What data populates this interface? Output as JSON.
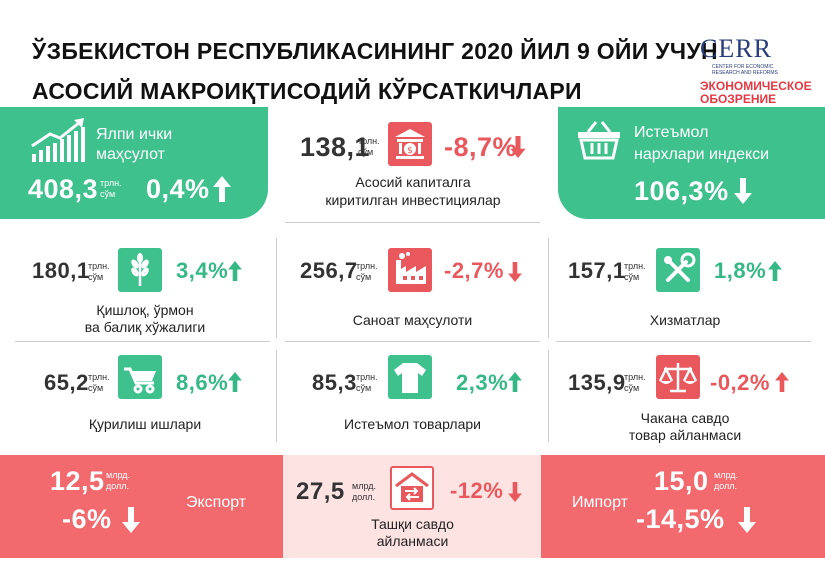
{
  "header": {
    "line1": "ЎЗБЕКИСТОН РЕСПУБЛИКАСИНИНГ 2020 ЙИЛ 9 ОЙИ УЧУН",
    "line2": "АСОСИЙ  МАКРОИҚТИСОДИЙ КЎРСАТКИЧЛАРИ"
  },
  "logo": {
    "name": "CERR",
    "sub1": "CENTER FOR ECONOMIC",
    "sub2": "RESEARCH AND REFORMS",
    "eo1": "ЭКОНОМИЧЕСКОЕ",
    "eo2": "ОБОЗРЕНИЕ"
  },
  "gdp": {
    "label1": "Ялпи ички",
    "label2": "маҳсулот",
    "value": "408,3",
    "unit1": "трлн.",
    "unit2": "сўм",
    "change": "0,4%",
    "icon": "growth-chart-icon"
  },
  "investment": {
    "value": "138,1",
    "unit1": "трлн.",
    "unit2": "сўм",
    "change": "-8,7%",
    "label1": "Асосий капиталга",
    "label2": "киритилган инвестициялар",
    "icon": "bank-icon"
  },
  "cpi": {
    "label1": "Истеъмол",
    "label2": "нархлари индекси",
    "value": "106,3%",
    "icon": "basket-icon"
  },
  "agriculture": {
    "value": "180,1",
    "unit1": "трлн.",
    "unit2": "сўм",
    "change": "3,4%",
    "label1": "Қишлоқ, ўрмон",
    "label2": "ва балиқ хўжалиги",
    "icon": "wheat-icon"
  },
  "industry": {
    "value": "256,7",
    "unit1": "трлн.",
    "unit2": "сўм",
    "change": "-2,7%",
    "label1": "Саноат маҳсулоти",
    "icon": "factory-icon"
  },
  "services": {
    "value": "157,1",
    "unit1": "трлн.",
    "unit2": "сўм",
    "change": "1,8%",
    "label1": "Хизматлар",
    "icon": "tools-icon"
  },
  "construction": {
    "value": "65,2",
    "unit1": "трлн.",
    "unit2": "сўм",
    "change": "8,6%",
    "label1": "Қурилиш ишлари",
    "icon": "wheelbarrow-icon"
  },
  "consumer_goods": {
    "value": "85,3",
    "unit1": "трлн.",
    "unit2": "сўм",
    "change": "2,3%",
    "label1": "Истеъмол товарлари",
    "icon": "tshirt-icon"
  },
  "retail": {
    "value": "135,9",
    "unit1": "трлн.",
    "unit2": "сўм",
    "change": "-0,2%",
    "label1": "Чакана савдо",
    "label2": "товар айланмаси",
    "icon": "scales-icon"
  },
  "export": {
    "value": "12,5",
    "unit1": "млрд.",
    "unit2": "долл.",
    "change": "-6%",
    "label": "Экспорт"
  },
  "trade": {
    "value": "27,5",
    "unit1": "млрд.",
    "unit2": "долл.",
    "change": "-12%",
    "label1": "Ташқи савдо",
    "label2": "айланмаси",
    "icon": "exchange-icon"
  },
  "import": {
    "value": "15,0",
    "unit1": "млрд.",
    "unit2": "долл.",
    "change": "-14,5%",
    "label": "Импорт"
  },
  "colors": {
    "green": "#3ec18d",
    "red": "#e9585d",
    "pink": "#fde3e1",
    "dark_red": "#f26a6e"
  }
}
